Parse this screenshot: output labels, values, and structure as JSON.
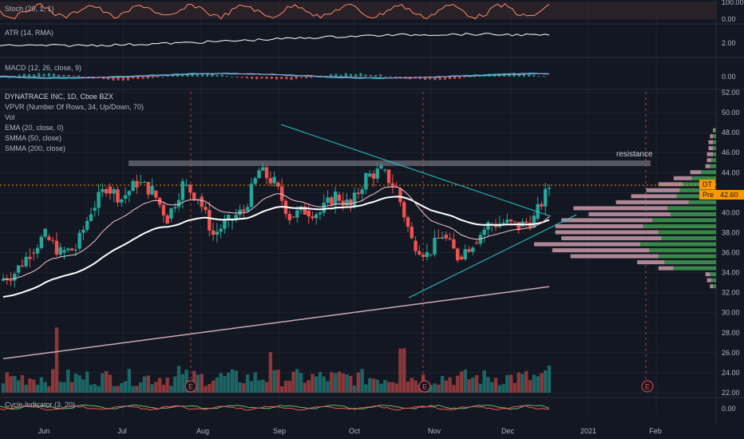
{
  "header": {
    "title": "DYNATRACE INC, 1D, Cboe BZX",
    "studies": [
      "VPVR (Number Of Rows, 34, Up/Down, 70)",
      "Vol",
      "EMA (20, close, 0)",
      "SMMA (50, close)",
      "SMMA (200, close)"
    ]
  },
  "panes": {
    "stoch": {
      "label": "Stoch (20, 1, 1)",
      "ticks": [
        "100.00",
        "0.00"
      ]
    },
    "atr": {
      "label": "ATR (14, RMA)",
      "ticks": [
        "2.00"
      ]
    },
    "macd": {
      "label": "MACD (12, 26, close, 9)",
      "ticks": [
        "0.00"
      ]
    },
    "cycle": {
      "label": "Cycle Indicator (3, 20)",
      "ticks": [
        "0.00"
      ]
    }
  },
  "annotations": {
    "resistance": "resistance",
    "earnings_marker": "E"
  },
  "price_tags": {
    "symbol": "DT",
    "pre_label": "Pre",
    "pre_value": "42.60"
  },
  "colors": {
    "background": "#131722",
    "up": "#26a69a",
    "down": "#ef5350",
    "ema": "#f3c6d0",
    "smma50": "#ffffff",
    "smma200": "#c9a9b6",
    "trendline": "#26c6c6",
    "vp_up": "#3f9b4f",
    "vp_down": "#d6a4b2"
  },
  "chart_data": {
    "type": "candlestick",
    "symbol": "DT",
    "timeframe": "1D",
    "ylim": [
      22,
      52
    ],
    "y_ticks": [
      "52.00",
      "50.00",
      "48.00",
      "46.00",
      "44.00",
      "42.00",
      "40.00",
      "38.00",
      "36.00",
      "34.00",
      "32.00",
      "30.00",
      "28.00",
      "26.00",
      "24.00",
      "22.00"
    ],
    "x_ticks": [
      "Jun",
      "Jul",
      "Aug",
      "Sep",
      "Oct",
      "Nov",
      "Dec",
      "2021",
      "Feb"
    ],
    "last_close": 42.6,
    "resistance_level": 44.9,
    "ohlc_weekly_approx": [
      {
        "o": 33.2,
        "h": 34.6,
        "l": 32.4,
        "c": 34.0
      },
      {
        "o": 34.0,
        "h": 36.6,
        "l": 33.6,
        "c": 36.0
      },
      {
        "o": 36.0,
        "h": 38.4,
        "l": 35.2,
        "c": 37.8
      },
      {
        "o": 37.6,
        "h": 38.2,
        "l": 34.9,
        "c": 36.0
      },
      {
        "o": 36.0,
        "h": 37.0,
        "l": 35.0,
        "c": 36.4
      },
      {
        "o": 36.4,
        "h": 40.6,
        "l": 36.2,
        "c": 40.2
      },
      {
        "o": 40.2,
        "h": 43.4,
        "l": 39.6,
        "c": 42.6
      },
      {
        "o": 42.6,
        "h": 43.6,
        "l": 40.6,
        "c": 41.4
      },
      {
        "o": 41.4,
        "h": 43.8,
        "l": 40.2,
        "c": 43.0
      },
      {
        "o": 43.0,
        "h": 44.6,
        "l": 41.4,
        "c": 42.2
      },
      {
        "o": 42.2,
        "h": 43.4,
        "l": 38.2,
        "c": 39.4
      },
      {
        "o": 39.4,
        "h": 43.6,
        "l": 38.8,
        "c": 42.8
      },
      {
        "o": 42.8,
        "h": 43.6,
        "l": 40.8,
        "c": 41.6
      },
      {
        "o": 41.6,
        "h": 42.8,
        "l": 37.2,
        "c": 37.8
      },
      {
        "o": 37.8,
        "h": 39.8,
        "l": 35.8,
        "c": 39.2
      },
      {
        "o": 39.2,
        "h": 40.8,
        "l": 38.0,
        "c": 40.2
      },
      {
        "o": 40.2,
        "h": 44.8,
        "l": 40.0,
        "c": 44.2
      },
      {
        "o": 44.2,
        "h": 48.6,
        "l": 42.2,
        "c": 43.0
      },
      {
        "o": 43.0,
        "h": 43.8,
        "l": 38.8,
        "c": 39.6
      },
      {
        "o": 39.6,
        "h": 41.6,
        "l": 38.2,
        "c": 40.2
      },
      {
        "o": 40.2,
        "h": 41.2,
        "l": 38.8,
        "c": 40.0
      },
      {
        "o": 40.0,
        "h": 42.6,
        "l": 39.6,
        "c": 41.8
      },
      {
        "o": 41.8,
        "h": 42.2,
        "l": 39.6,
        "c": 40.6
      },
      {
        "o": 40.6,
        "h": 44.0,
        "l": 40.4,
        "c": 43.6
      },
      {
        "o": 43.6,
        "h": 45.0,
        "l": 42.4,
        "c": 44.2
      },
      {
        "o": 44.2,
        "h": 44.4,
        "l": 41.8,
        "c": 42.4
      },
      {
        "o": 42.4,
        "h": 42.6,
        "l": 36.8,
        "c": 37.2
      },
      {
        "o": 37.2,
        "h": 39.0,
        "l": 35.2,
        "c": 35.8
      },
      {
        "o": 35.8,
        "h": 38.6,
        "l": 35.6,
        "c": 37.8
      },
      {
        "o": 37.8,
        "h": 38.2,
        "l": 35.0,
        "c": 35.6
      },
      {
        "o": 35.6,
        "h": 37.4,
        "l": 35.2,
        "c": 37.0
      },
      {
        "o": 37.0,
        "h": 39.2,
        "l": 36.6,
        "c": 38.8
      },
      {
        "o": 38.8,
        "h": 40.6,
        "l": 37.8,
        "c": 39.0
      },
      {
        "o": 39.0,
        "h": 40.2,
        "l": 37.8,
        "c": 38.6
      },
      {
        "o": 38.6,
        "h": 40.0,
        "l": 38.2,
        "c": 39.4
      },
      {
        "o": 39.4,
        "h": 43.4,
        "l": 39.2,
        "c": 42.6
      }
    ],
    "volume_profile": {
      "price_rows": [
        48.2,
        47.6,
        47.0,
        46.4,
        45.8,
        45.2,
        44.6,
        44.0,
        43.4,
        42.8,
        42.2,
        41.6,
        41.0,
        40.4,
        39.8,
        39.2,
        38.6,
        38.0,
        37.4,
        36.8,
        36.2,
        35.6,
        35.0,
        34.4,
        33.8,
        33.2,
        32.6
      ],
      "up_volume": [
        1,
        2,
        2,
        2,
        2,
        3,
        4,
        10,
        16,
        22,
        24,
        26,
        18,
        32,
        30,
        42,
        48,
        38,
        36,
        50,
        44,
        38,
        34,
        28,
        4,
        3,
        2
      ],
      "down_volume": [
        1,
        2,
        3,
        3,
        4,
        3,
        3,
        7,
        12,
        16,
        22,
        30,
        48,
        62,
        54,
        60,
        58,
        68,
        66,
        70,
        64,
        58,
        18,
        10,
        3,
        3,
        2
      ]
    },
    "volume_scale_note": "relative",
    "earnings_markers": [
      "Aug",
      "Nov",
      "Feb"
    ]
  }
}
